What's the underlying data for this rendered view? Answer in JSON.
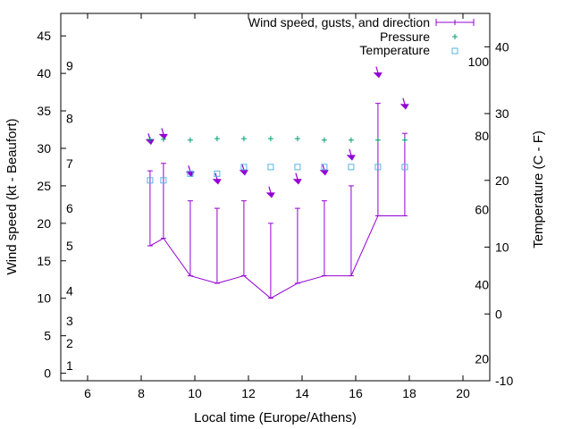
{
  "colors": {
    "wind": "#9400d3",
    "pressure": "#009e73",
    "temperature": "#56b4e9",
    "axis": "#000000",
    "background": "#ffffff"
  },
  "chart_data": {
    "type": "line",
    "title": "",
    "xlabel": "Local time (Europe/Athens)",
    "ylabel_left": "Wind speed (kt - Beaufort)",
    "ylabel_right": "Temperature (C - F)",
    "xlim": [
      5,
      21
    ],
    "ylim_left": [
      -1,
      48
    ],
    "ylim_right": [
      -10,
      45
    ],
    "x_ticks": [
      "6",
      "8",
      "10",
      "12",
      "14",
      "16",
      "18",
      "20"
    ],
    "y_left_ticks": [
      "0",
      "5",
      "10",
      "15",
      "20",
      "25",
      "30",
      "35",
      "40",
      "45"
    ],
    "y_right_ticks": [
      "-10",
      "0",
      "10",
      "20",
      "30",
      "40"
    ],
    "beaufort_labels": [
      {
        "label": "1",
        "kt": 1
      },
      {
        "label": "2",
        "kt": 4
      },
      {
        "label": "3",
        "kt": 7
      },
      {
        "label": "4",
        "kt": 11
      },
      {
        "label": "5",
        "kt": 17
      },
      {
        "label": "6",
        "kt": 22
      },
      {
        "label": "7",
        "kt": 28
      },
      {
        "label": "8",
        "kt": 34
      },
      {
        "label": "9",
        "kt": 41
      }
    ],
    "fahrenheit_labels": [
      {
        "label": "20",
        "c": -6.7
      },
      {
        "label": "40",
        "c": 4.4
      },
      {
        "label": "60",
        "c": 15.6
      },
      {
        "label": "80",
        "c": 26.7
      },
      {
        "label": "100",
        "c": 37.8
      }
    ],
    "legend": {
      "position": "top-right",
      "entries": [
        "Wind speed, gusts, and direction",
        "Pressure",
        "Temperature"
      ]
    },
    "series": [
      {
        "name": "Wind speed, gusts, and direction",
        "x": [
          8.33,
          8.83,
          9.83,
          10.83,
          11.83,
          12.83,
          13.83,
          14.83,
          15.83,
          16.83,
          17.83
        ],
        "speed": [
          17,
          18,
          13,
          12,
          13,
          10,
          12,
          13,
          13,
          21,
          21
        ],
        "gusts": [
          27,
          28,
          23,
          22,
          23,
          20,
          22,
          23,
          25,
          36,
          32
        ],
        "direction_kt": [
          30.8,
          31.5,
          26.5,
          25.5,
          26.7,
          23.7,
          25.5,
          26.7,
          28.7,
          39.7,
          35.5
        ]
      },
      {
        "name": "Pressure",
        "x": [
          8.33,
          8.83,
          9.83,
          10.83,
          11.83,
          12.83,
          13.83,
          14.83,
          15.83,
          16.83,
          17.83
        ],
        "y_kt": [
          31.2,
          31.2,
          31.1,
          31.3,
          31.3,
          31.3,
          31.3,
          31.1,
          31.1,
          31.1,
          31.1
        ]
      },
      {
        "name": "Temperature",
        "x": [
          8.33,
          8.83,
          9.83,
          10.83,
          11.83,
          12.83,
          13.83,
          14.83,
          15.83,
          16.83,
          17.83
        ],
        "y_c": [
          20,
          20,
          21,
          21,
          22,
          22,
          22,
          22,
          22,
          22,
          22
        ]
      }
    ],
    "grid": false
  }
}
